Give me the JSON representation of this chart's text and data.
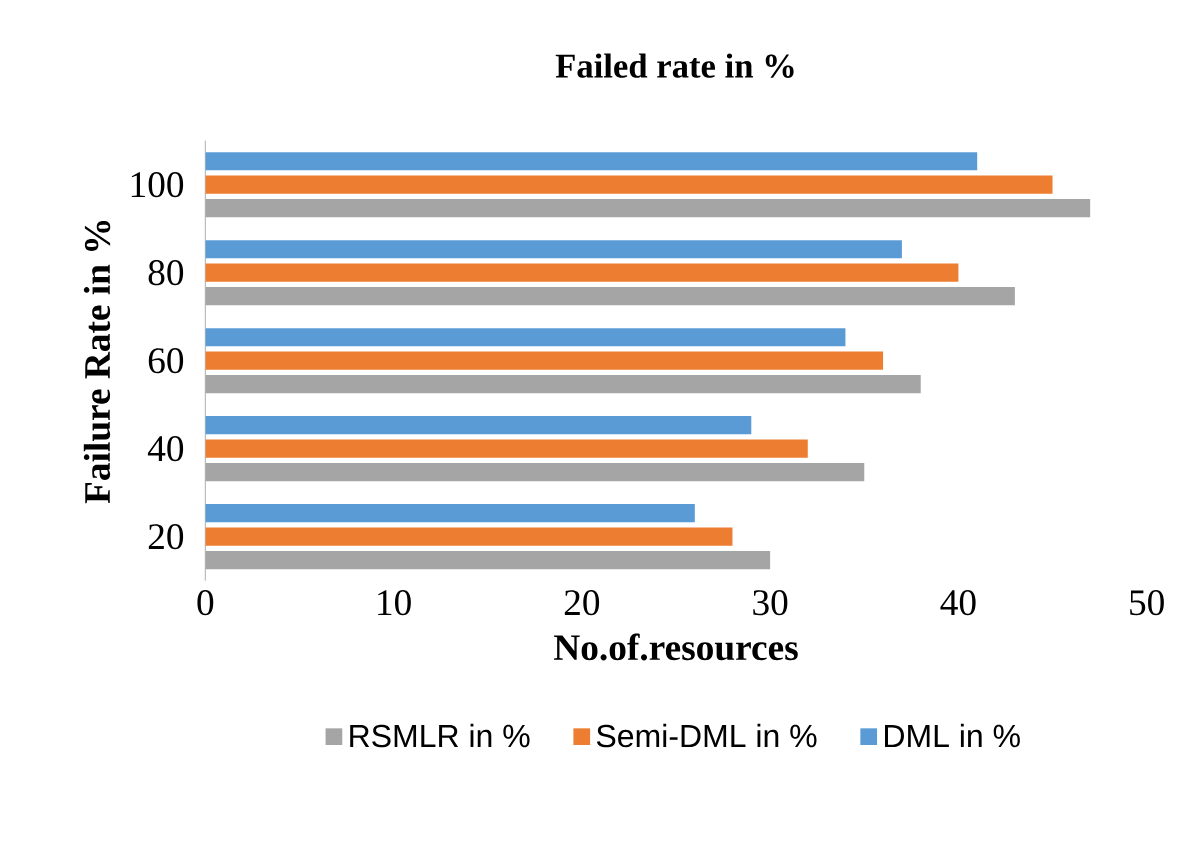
{
  "chart_data": {
    "type": "bar",
    "orientation": "horizontal",
    "title": "Failed rate in %",
    "xlabel": "No.of.resources",
    "ylabel": "Failure Rate  in %",
    "categories": [
      "100",
      "80",
      "60",
      "40",
      "20"
    ],
    "series": [
      {
        "name": "RSMLR in %",
        "color": "#a5a5a5",
        "values": [
          47,
          43,
          38,
          35,
          30
        ]
      },
      {
        "name": "Semi-DML in %",
        "color": "#ed7d31",
        "values": [
          45,
          40,
          36,
          32,
          28
        ]
      },
      {
        "name": "DML in %",
        "color": "#5b9bd5",
        "values": [
          41,
          37,
          34,
          29,
          26
        ]
      }
    ],
    "xlim": [
      0,
      50
    ],
    "xticks": [
      0,
      10,
      20,
      30,
      40,
      50
    ],
    "legend": "bottom"
  }
}
